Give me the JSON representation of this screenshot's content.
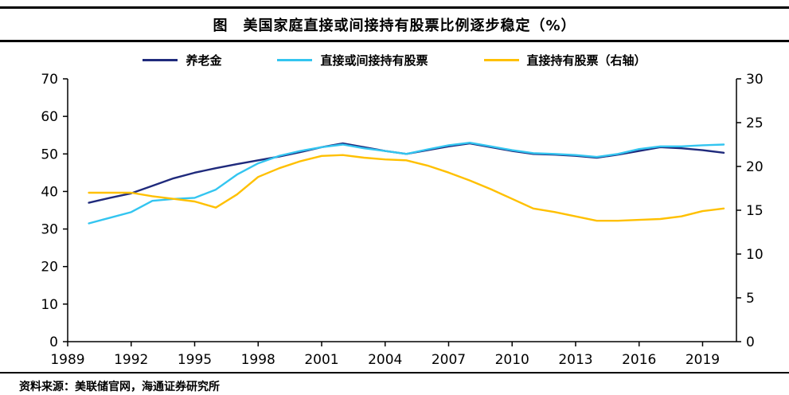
{
  "header": {
    "title": "图　美国家庭直接或间接持有股票比例逐步稳定（%）"
  },
  "footer": {
    "source": "资料来源：美联储官网，海通证券研究所"
  },
  "chart_data": {
    "type": "line",
    "title": "图　美国家庭直接或间接持有股票比例逐步稳定（%）",
    "grid": false,
    "legend_position": "top",
    "left_ylim": [
      0,
      70
    ],
    "left_ticks": [
      0,
      10,
      20,
      30,
      40,
      50,
      60,
      70
    ],
    "right_ylim": [
      0,
      30
    ],
    "right_ticks": [
      0,
      5,
      10,
      15,
      20,
      25,
      30
    ],
    "x_range": [
      1989,
      2020.6
    ],
    "x_label_ticks": [
      1989,
      1992,
      1995,
      1998,
      2001,
      2004,
      2007,
      2010,
      2013,
      2016,
      2019
    ],
    "years": [
      1990,
      1991,
      1992,
      1993,
      1994,
      1995,
      1996,
      1997,
      1998,
      1999,
      2000,
      2001,
      2002,
      2003,
      2004,
      2005,
      2006,
      2007,
      2008,
      2009,
      2010,
      2011,
      2012,
      2013,
      2014,
      2015,
      2016,
      2017,
      2018,
      2019,
      2020
    ],
    "series": [
      {
        "name": "养老金",
        "axis": "left",
        "color": "#1f2a7c",
        "values": [
          37.0,
          38.3,
          39.5,
          41.5,
          43.5,
          45.0,
          46.2,
          47.3,
          48.3,
          49.3,
          50.5,
          51.8,
          52.8,
          51.8,
          50.8,
          50.0,
          51.0,
          52.0,
          52.8,
          51.8,
          50.8,
          50.0,
          49.8,
          49.5,
          49.0,
          49.8,
          50.8,
          51.8,
          51.5,
          51.0,
          50.3
        ]
      },
      {
        "name": "直接或间接持有股票",
        "axis": "left",
        "color": "#33c5f0",
        "values": [
          31.5,
          33.0,
          34.5,
          37.5,
          38.0,
          38.3,
          40.5,
          44.5,
          47.5,
          49.5,
          50.8,
          51.8,
          52.5,
          51.5,
          50.8,
          50.0,
          51.2,
          52.3,
          53.0,
          52.0,
          51.0,
          50.2,
          50.0,
          49.7,
          49.2,
          50.0,
          51.3,
          52.0,
          52.0,
          52.3,
          52.5
        ]
      },
      {
        "name": "直接持有股票（右轴）",
        "axis": "right",
        "color": "#ffc000",
        "values": [
          17.0,
          17.0,
          17.0,
          16.6,
          16.3,
          16.0,
          15.3,
          16.8,
          18.8,
          19.8,
          20.6,
          21.2,
          21.3,
          21.0,
          20.8,
          20.7,
          20.1,
          19.3,
          18.4,
          17.4,
          16.3,
          15.2,
          14.8,
          14.3,
          13.8,
          13.8,
          13.9,
          14.0,
          14.3,
          14.9,
          15.2
        ]
      }
    ]
  }
}
